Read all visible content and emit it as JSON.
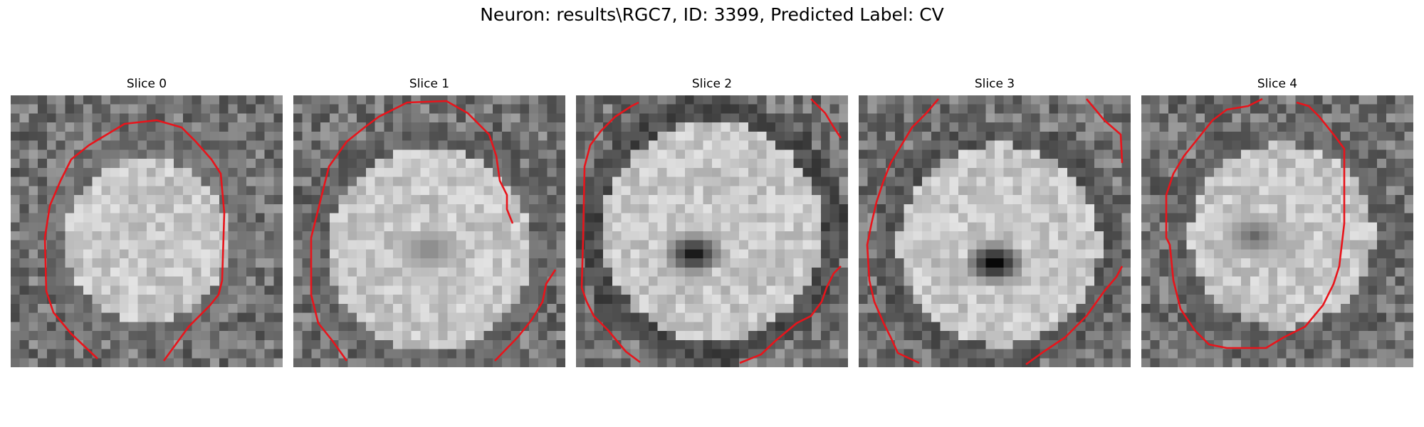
{
  "figure": {
    "title": "Neuron: results\\RGC7, ID: 3399, Predicted Label: CV",
    "colormap": "gray",
    "contour_color": "#e8141b"
  },
  "slices": [
    {
      "title": "Slice 0",
      "center_brightness": "bright",
      "dark_center": false
    },
    {
      "title": "Slice 1",
      "center_brightness": "bright",
      "dark_center": false
    },
    {
      "title": "Slice 2",
      "center_brightness": "bright",
      "dark_center": true
    },
    {
      "title": "Slice 3",
      "center_brightness": "bright",
      "dark_center": true
    },
    {
      "title": "Slice 4",
      "center_brightness": "bright",
      "dark_center": false
    }
  ]
}
